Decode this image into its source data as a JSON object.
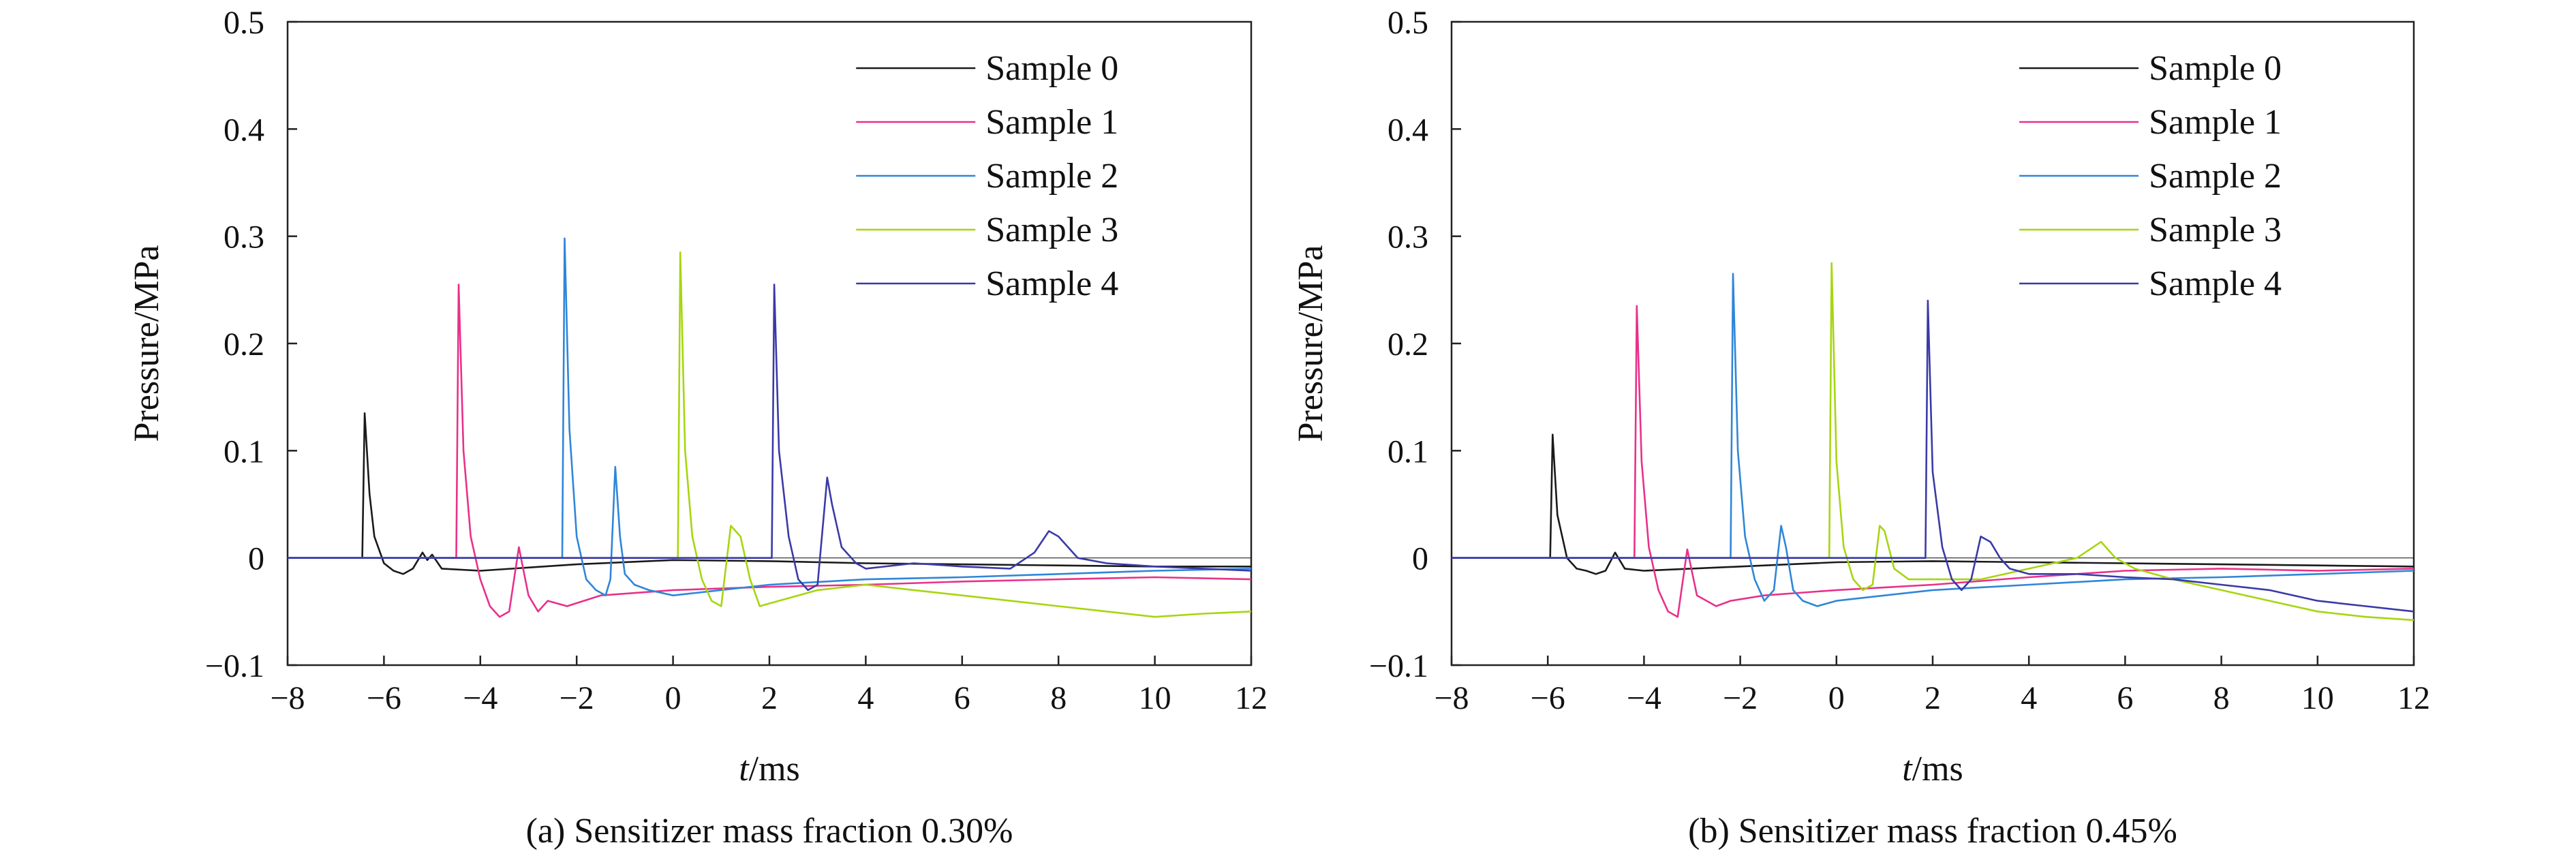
{
  "chart_data": [
    {
      "type": "line",
      "panel_caption": "(a) Sensitizer mass fraction 0.30%",
      "xlabel_italic": "t",
      "xlabel_unit": "/ms",
      "ylabel": "Pressure/MPa",
      "xlim": [
        -8,
        12
      ],
      "ylim": [
        -0.1,
        0.5
      ],
      "xticks": [
        -8,
        -6,
        -4,
        -2,
        0,
        2,
        4,
        6,
        8,
        10,
        12
      ],
      "yticks": [
        -0.1,
        0,
        0.1,
        0.2,
        0.3,
        0.4,
        0.5
      ],
      "xtick_labels": [
        "−8",
        "−6",
        "−4",
        "−2",
        "0",
        "2",
        "4",
        "6",
        "8",
        "10",
        "12"
      ],
      "ytick_labels": [
        "−0.1",
        "0",
        "0.1",
        "0.2",
        "0.3",
        "0.4",
        "0.5"
      ],
      "legend_position": "top-right",
      "series": [
        {
          "name": "Sample 0",
          "color": "#1a1a1a",
          "x": [
            -8,
            -6.45,
            -6.4,
            -6.3,
            -6.2,
            -6.0,
            -5.8,
            -5.6,
            -5.4,
            -5.2,
            -5.1,
            -5.0,
            -4.8,
            -4.0,
            -2,
            0,
            2,
            4,
            6,
            8,
            10,
            12
          ],
          "y": [
            0,
            0,
            0.135,
            0.06,
            0.02,
            -0.005,
            -0.012,
            -0.015,
            -0.01,
            0.005,
            -0.002,
            0.003,
            -0.01,
            -0.012,
            -0.006,
            -0.002,
            -0.003,
            -0.005,
            -0.006,
            -0.007,
            -0.008,
            -0.008
          ]
        },
        {
          "name": "Sample 1",
          "color": "#e8318a",
          "x": [
            -8,
            -4.5,
            -4.45,
            -4.35,
            -4.2,
            -4.0,
            -3.8,
            -3.6,
            -3.4,
            -3.2,
            -3.0,
            -2.8,
            -2.6,
            -2.2,
            -1.5,
            0,
            2,
            4,
            6,
            8,
            10,
            12
          ],
          "y": [
            0,
            0,
            0.255,
            0.1,
            0.02,
            -0.02,
            -0.045,
            -0.055,
            -0.05,
            0.01,
            -0.035,
            -0.05,
            -0.04,
            -0.045,
            -0.035,
            -0.03,
            -0.027,
            -0.025,
            -0.022,
            -0.02,
            -0.018,
            -0.02
          ]
        },
        {
          "name": "Sample 2",
          "color": "#2f86d8",
          "x": [
            -8,
            -2.3,
            -2.25,
            -2.15,
            -2.0,
            -1.8,
            -1.6,
            -1.4,
            -1.3,
            -1.2,
            -1.1,
            -1.0,
            -0.8,
            -0.5,
            0,
            2,
            4,
            6,
            8,
            10,
            12
          ],
          "y": [
            0,
            0,
            0.298,
            0.12,
            0.02,
            -0.02,
            -0.03,
            -0.035,
            -0.02,
            0.085,
            0.02,
            -0.015,
            -0.025,
            -0.03,
            -0.035,
            -0.025,
            -0.02,
            -0.018,
            -0.015,
            -0.012,
            -0.01
          ]
        },
        {
          "name": "Sample 3",
          "color": "#a6d60f",
          "x": [
            -8,
            0.1,
            0.15,
            0.25,
            0.4,
            0.6,
            0.8,
            1.0,
            1.2,
            1.4,
            1.6,
            1.8,
            2.2,
            3,
            4,
            5,
            6,
            7,
            8,
            9,
            10,
            11,
            12
          ],
          "y": [
            0,
            0,
            0.285,
            0.1,
            0.02,
            -0.02,
            -0.04,
            -0.045,
            0.03,
            0.02,
            -0.02,
            -0.045,
            -0.04,
            -0.03,
            -0.025,
            -0.03,
            -0.035,
            -0.04,
            -0.045,
            -0.05,
            -0.055,
            -0.052,
            -0.05
          ]
        },
        {
          "name": "Sample 4",
          "color": "#3a3aa8",
          "x": [
            -8,
            2.05,
            2.1,
            2.2,
            2.4,
            2.6,
            2.8,
            3.0,
            3.2,
            3.3,
            3.5,
            3.8,
            4.0,
            5.0,
            6.0,
            7.0,
            7.5,
            7.8,
            8.0,
            8.4,
            9,
            10,
            11,
            12
          ],
          "y": [
            0,
            0,
            0.255,
            0.1,
            0.02,
            -0.02,
            -0.03,
            -0.025,
            0.075,
            0.05,
            0.01,
            -0.005,
            -0.01,
            -0.005,
            -0.008,
            -0.01,
            0.005,
            0.025,
            0.02,
            0.0,
            -0.005,
            -0.008,
            -0.01,
            -0.012
          ]
        }
      ]
    },
    {
      "type": "line",
      "panel_caption": "(b) Sensitizer mass fraction 0.45%",
      "xlabel_italic": "t",
      "xlabel_unit": "/ms",
      "ylabel": "Pressure/MPa",
      "xlim": [
        -8,
        12
      ],
      "ylim": [
        -0.1,
        0.5
      ],
      "xticks": [
        -8,
        -6,
        -4,
        -2,
        0,
        2,
        4,
        6,
        8,
        10,
        12
      ],
      "yticks": [
        -0.1,
        0,
        0.1,
        0.2,
        0.3,
        0.4,
        0.5
      ],
      "xtick_labels": [
        "−8",
        "−6",
        "−4",
        "−2",
        "0",
        "2",
        "4",
        "6",
        "8",
        "10",
        "12"
      ],
      "ytick_labels": [
        "−0.1",
        "0",
        "0.1",
        "0.2",
        "0.3",
        "0.4",
        "0.5"
      ],
      "legend_position": "top-right",
      "series": [
        {
          "name": "Sample 0",
          "color": "#1a1a1a",
          "x": [
            -8,
            -5.95,
            -5.9,
            -5.8,
            -5.6,
            -5.4,
            -5.2,
            -5.0,
            -4.8,
            -4.6,
            -4.4,
            -4.0,
            -2,
            0,
            2,
            4,
            6,
            8,
            10,
            12
          ],
          "y": [
            0,
            0,
            0.115,
            0.04,
            0.0,
            -0.01,
            -0.012,
            -0.015,
            -0.012,
            0.005,
            -0.01,
            -0.012,
            -0.008,
            -0.004,
            -0.003,
            -0.004,
            -0.005,
            -0.006,
            -0.007,
            -0.008
          ]
        },
        {
          "name": "Sample 1",
          "color": "#e8318a",
          "x": [
            -8,
            -4.2,
            -4.15,
            -4.05,
            -3.9,
            -3.7,
            -3.5,
            -3.3,
            -3.1,
            -2.9,
            -2.7,
            -2.5,
            -2.2,
            -1.5,
            0,
            2,
            4,
            6,
            8,
            10,
            12
          ],
          "y": [
            0,
            0,
            0.235,
            0.09,
            0.01,
            -0.03,
            -0.05,
            -0.055,
            0.008,
            -0.035,
            -0.04,
            -0.045,
            -0.04,
            -0.035,
            -0.03,
            -0.025,
            -0.018,
            -0.012,
            -0.01,
            -0.012,
            -0.01
          ]
        },
        {
          "name": "Sample 2",
          "color": "#2f86d8",
          "x": [
            -8,
            -2.2,
            -2.15,
            -2.05,
            -1.9,
            -1.7,
            -1.5,
            -1.3,
            -1.15,
            -1.05,
            -0.9,
            -0.7,
            -0.4,
            0,
            2,
            4,
            6,
            8,
            10,
            12
          ],
          "y": [
            0,
            0,
            0.265,
            0.1,
            0.02,
            -0.02,
            -0.04,
            -0.03,
            0.03,
            0.01,
            -0.03,
            -0.04,
            -0.045,
            -0.04,
            -0.03,
            -0.025,
            -0.02,
            -0.018,
            -0.015,
            -0.012
          ]
        },
        {
          "name": "Sample 3",
          "color": "#a6d60f",
          "x": [
            -8,
            -0.15,
            -0.1,
            0.0,
            0.15,
            0.35,
            0.55,
            0.75,
            0.9,
            1.0,
            1.2,
            1.5,
            2.0,
            3,
            4,
            5,
            5.5,
            5.8,
            6.2,
            7,
            8,
            9,
            10,
            11,
            12
          ],
          "y": [
            0,
            0,
            0.275,
            0.09,
            0.01,
            -0.02,
            -0.03,
            -0.025,
            0.03,
            0.025,
            -0.01,
            -0.02,
            -0.02,
            -0.02,
            -0.01,
            0.0,
            0.015,
            0.0,
            -0.01,
            -0.02,
            -0.03,
            -0.04,
            -0.05,
            -0.055,
            -0.058
          ]
        },
        {
          "name": "Sample 4",
          "color": "#3a3aa8",
          "x": [
            -8,
            1.85,
            1.9,
            2.0,
            2.2,
            2.4,
            2.6,
            2.8,
            3.0,
            3.2,
            3.4,
            3.6,
            4.0,
            5,
            6,
            7,
            8,
            9,
            10,
            11,
            12
          ],
          "y": [
            0,
            0,
            0.24,
            0.08,
            0.01,
            -0.02,
            -0.03,
            -0.02,
            0.02,
            0.015,
            0.0,
            -0.01,
            -0.015,
            -0.015,
            -0.018,
            -0.02,
            -0.025,
            -0.03,
            -0.04,
            -0.045,
            -0.05
          ]
        }
      ]
    }
  ]
}
